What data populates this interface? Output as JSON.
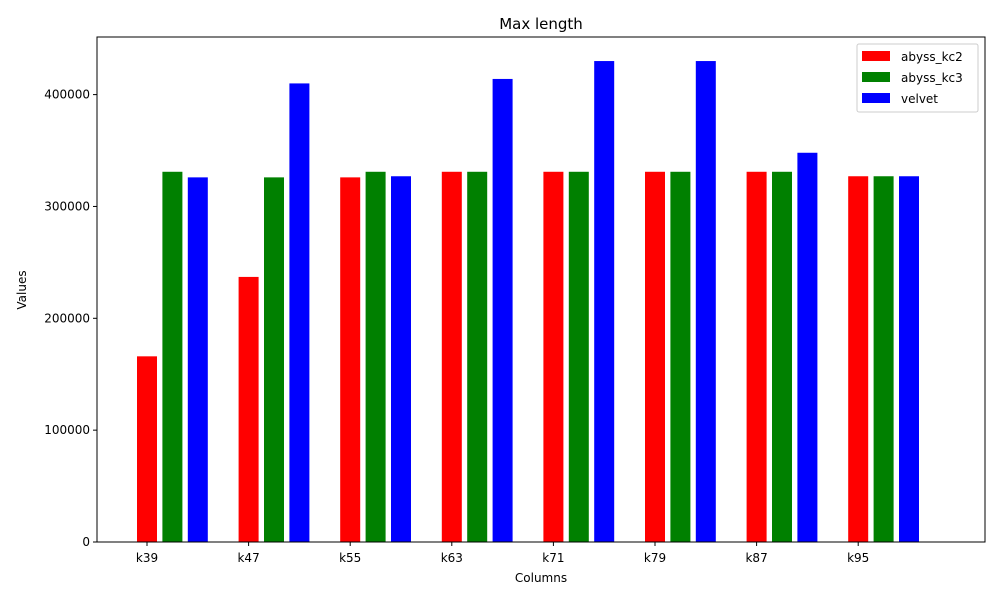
{
  "chart_data": {
    "type": "bar",
    "title": "Max length",
    "xlabel": "Columns",
    "ylabel": "Values",
    "categories": [
      "k39",
      "k47",
      "k55",
      "k63",
      "k71",
      "k79",
      "k87",
      "k95"
    ],
    "series": [
      {
        "name": "abyss_kc2",
        "color": "#ff0000",
        "values": [
          166000,
          237000,
          326000,
          331000,
          331000,
          331000,
          331000,
          327000
        ]
      },
      {
        "name": "abyss_kc3",
        "color": "#008000",
        "values": [
          331000,
          326000,
          331000,
          331000,
          331000,
          331000,
          331000,
          327000
        ]
      },
      {
        "name": "velvet",
        "color": "#0000ff",
        "values": [
          326000,
          410000,
          327000,
          414000,
          430000,
          430000,
          348000,
          327000
        ]
      }
    ],
    "yticks": [
      0,
      100000,
      200000,
      300000,
      400000
    ],
    "ylim": [
      0,
      451500
    ],
    "grid": false,
    "legend_position": "top-right"
  }
}
